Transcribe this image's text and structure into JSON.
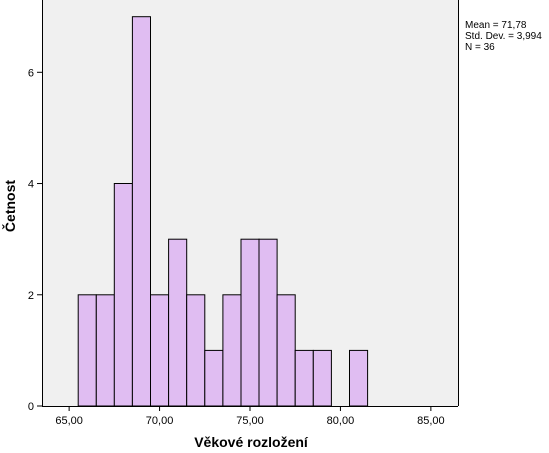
{
  "chart_data": {
    "type": "bar",
    "subtype": "histogram",
    "xlabel": "Věkové rozložení",
    "ylabel": "Četnost",
    "x_ticks": [
      "65,00",
      "70,00",
      "75,00",
      "80,00",
      "85,00"
    ],
    "x_tick_values": [
      65,
      70,
      75,
      80,
      85
    ],
    "y_ticks": [
      "0",
      "2",
      "4",
      "6"
    ],
    "y_tick_values": [
      0,
      2,
      4,
      6
    ],
    "xlim": [
      63.5,
      86.5
    ],
    "ylim": [
      0,
      7.3
    ],
    "bin_width": 1,
    "bins": [
      {
        "start": 65.5,
        "count": 2
      },
      {
        "start": 66.5,
        "count": 2
      },
      {
        "start": 67.5,
        "count": 4
      },
      {
        "start": 68.5,
        "count": 7
      },
      {
        "start": 69.5,
        "count": 2
      },
      {
        "start": 70.5,
        "count": 3
      },
      {
        "start": 71.5,
        "count": 2
      },
      {
        "start": 72.5,
        "count": 1
      },
      {
        "start": 73.5,
        "count": 2
      },
      {
        "start": 74.5,
        "count": 3
      },
      {
        "start": 75.5,
        "count": 3
      },
      {
        "start": 76.5,
        "count": 2
      },
      {
        "start": 77.5,
        "count": 1
      },
      {
        "start": 78.5,
        "count": 1
      },
      {
        "start": 80.5,
        "count": 1
      }
    ],
    "grid": false,
    "bar_color": "#e0bdf2",
    "plot_background": "#f0f0f0",
    "stats": {
      "mean": "Mean = 71,78",
      "std": "Std. Dev. = 3,994",
      "n": "N = 36"
    }
  }
}
